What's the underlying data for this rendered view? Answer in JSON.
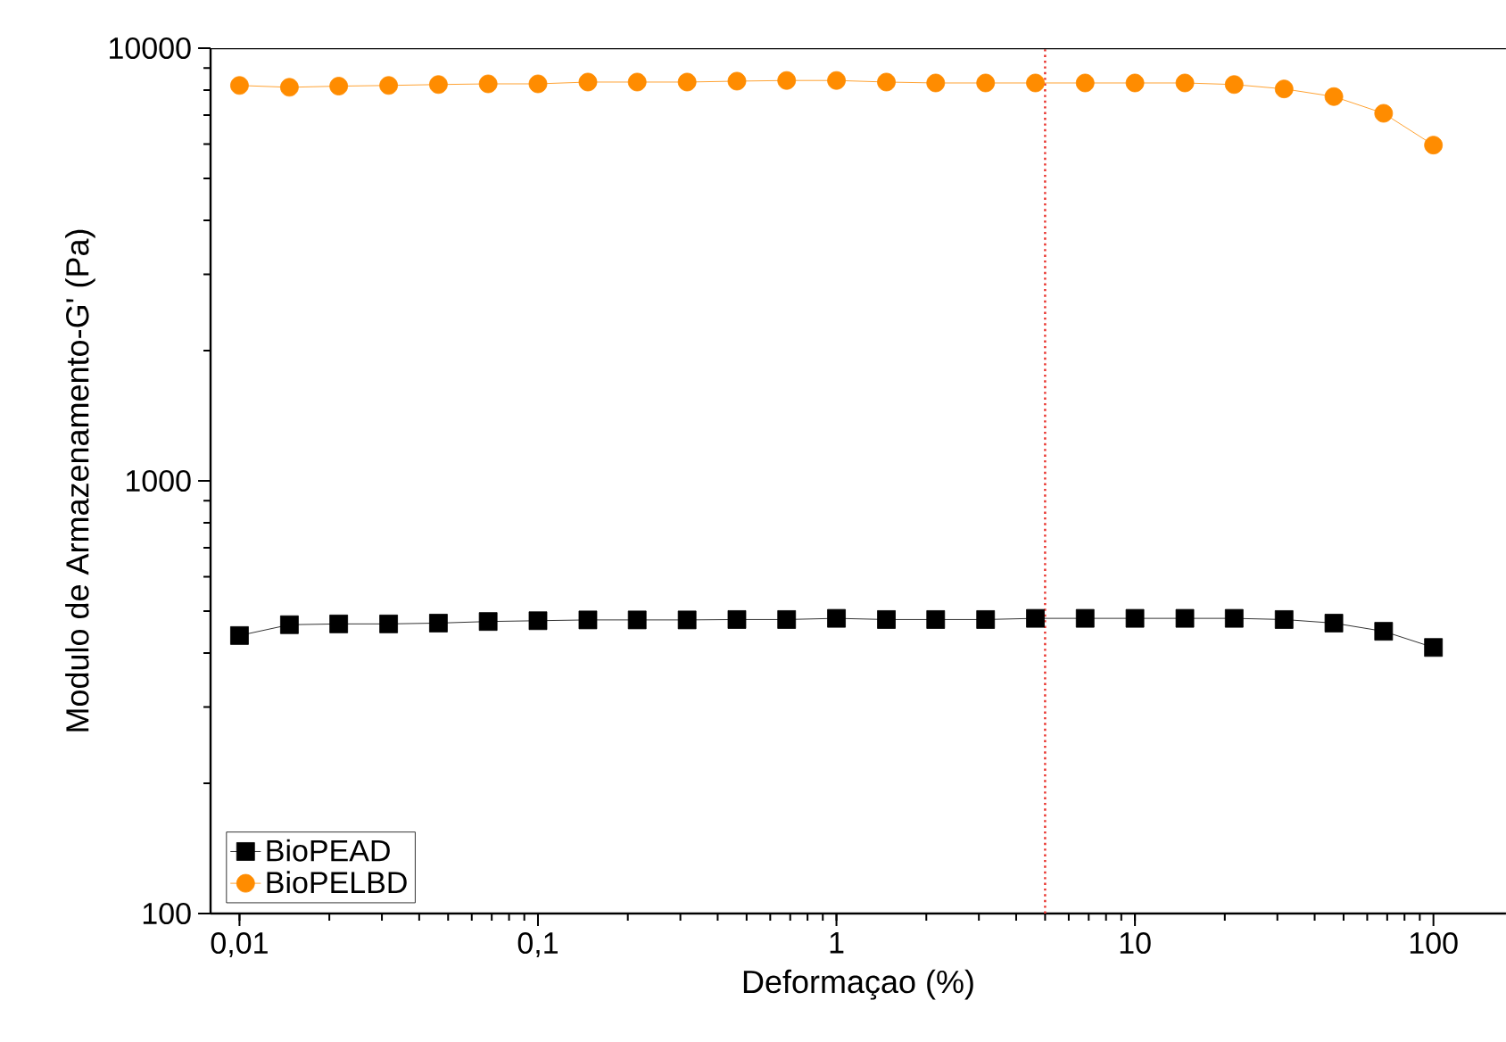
{
  "chart_data": {
    "type": "line",
    "xlabel": "Deformaçao (%)",
    "ylabel": "Modulo de Armazenamento-G' (Pa)",
    "log": "xy",
    "x": [
      0.01,
      0.0147,
      0.0215,
      0.0316,
      0.0464,
      0.0681,
      0.1,
      0.147,
      0.215,
      0.316,
      0.464,
      0.681,
      1,
      1.47,
      2.15,
      3.16,
      4.64,
      6.81,
      10,
      14.7,
      21.5,
      31.6,
      46.4,
      68.1,
      100
    ],
    "series": [
      {
        "name": "BioPEAD",
        "color": "#000000",
        "marker": "square",
        "values": [
          439,
          465,
          467,
          467,
          469,
          473,
          475,
          477,
          477,
          477,
          478,
          478,
          481,
          478,
          478,
          478,
          481,
          481,
          481,
          481,
          481,
          478,
          469,
          449,
          412
        ]
      },
      {
        "name": "BioPELBD",
        "color": "#ff8c00",
        "marker": "circle",
        "values": [
          8200,
          8120,
          8170,
          8200,
          8240,
          8270,
          8270,
          8350,
          8350,
          8350,
          8390,
          8420,
          8420,
          8350,
          8310,
          8310,
          8310,
          8310,
          8310,
          8310,
          8240,
          8050,
          7730,
          7070,
          5970
        ]
      }
    ],
    "xlim": [
      0.008,
      175
    ],
    "ylim": [
      100,
      10000
    ],
    "xticks": [
      {
        "value": 0.01,
        "label": "0,01"
      },
      {
        "value": 0.1,
        "label": "0,1"
      },
      1,
      10,
      100
    ],
    "yticks": [
      100,
      1000,
      10000
    ],
    "ref_lines": [
      {
        "axis": "x",
        "value": 5,
        "color": "#e8302a",
        "line_style": "dotted"
      }
    ],
    "legend": "bottom left",
    "grid": false
  }
}
